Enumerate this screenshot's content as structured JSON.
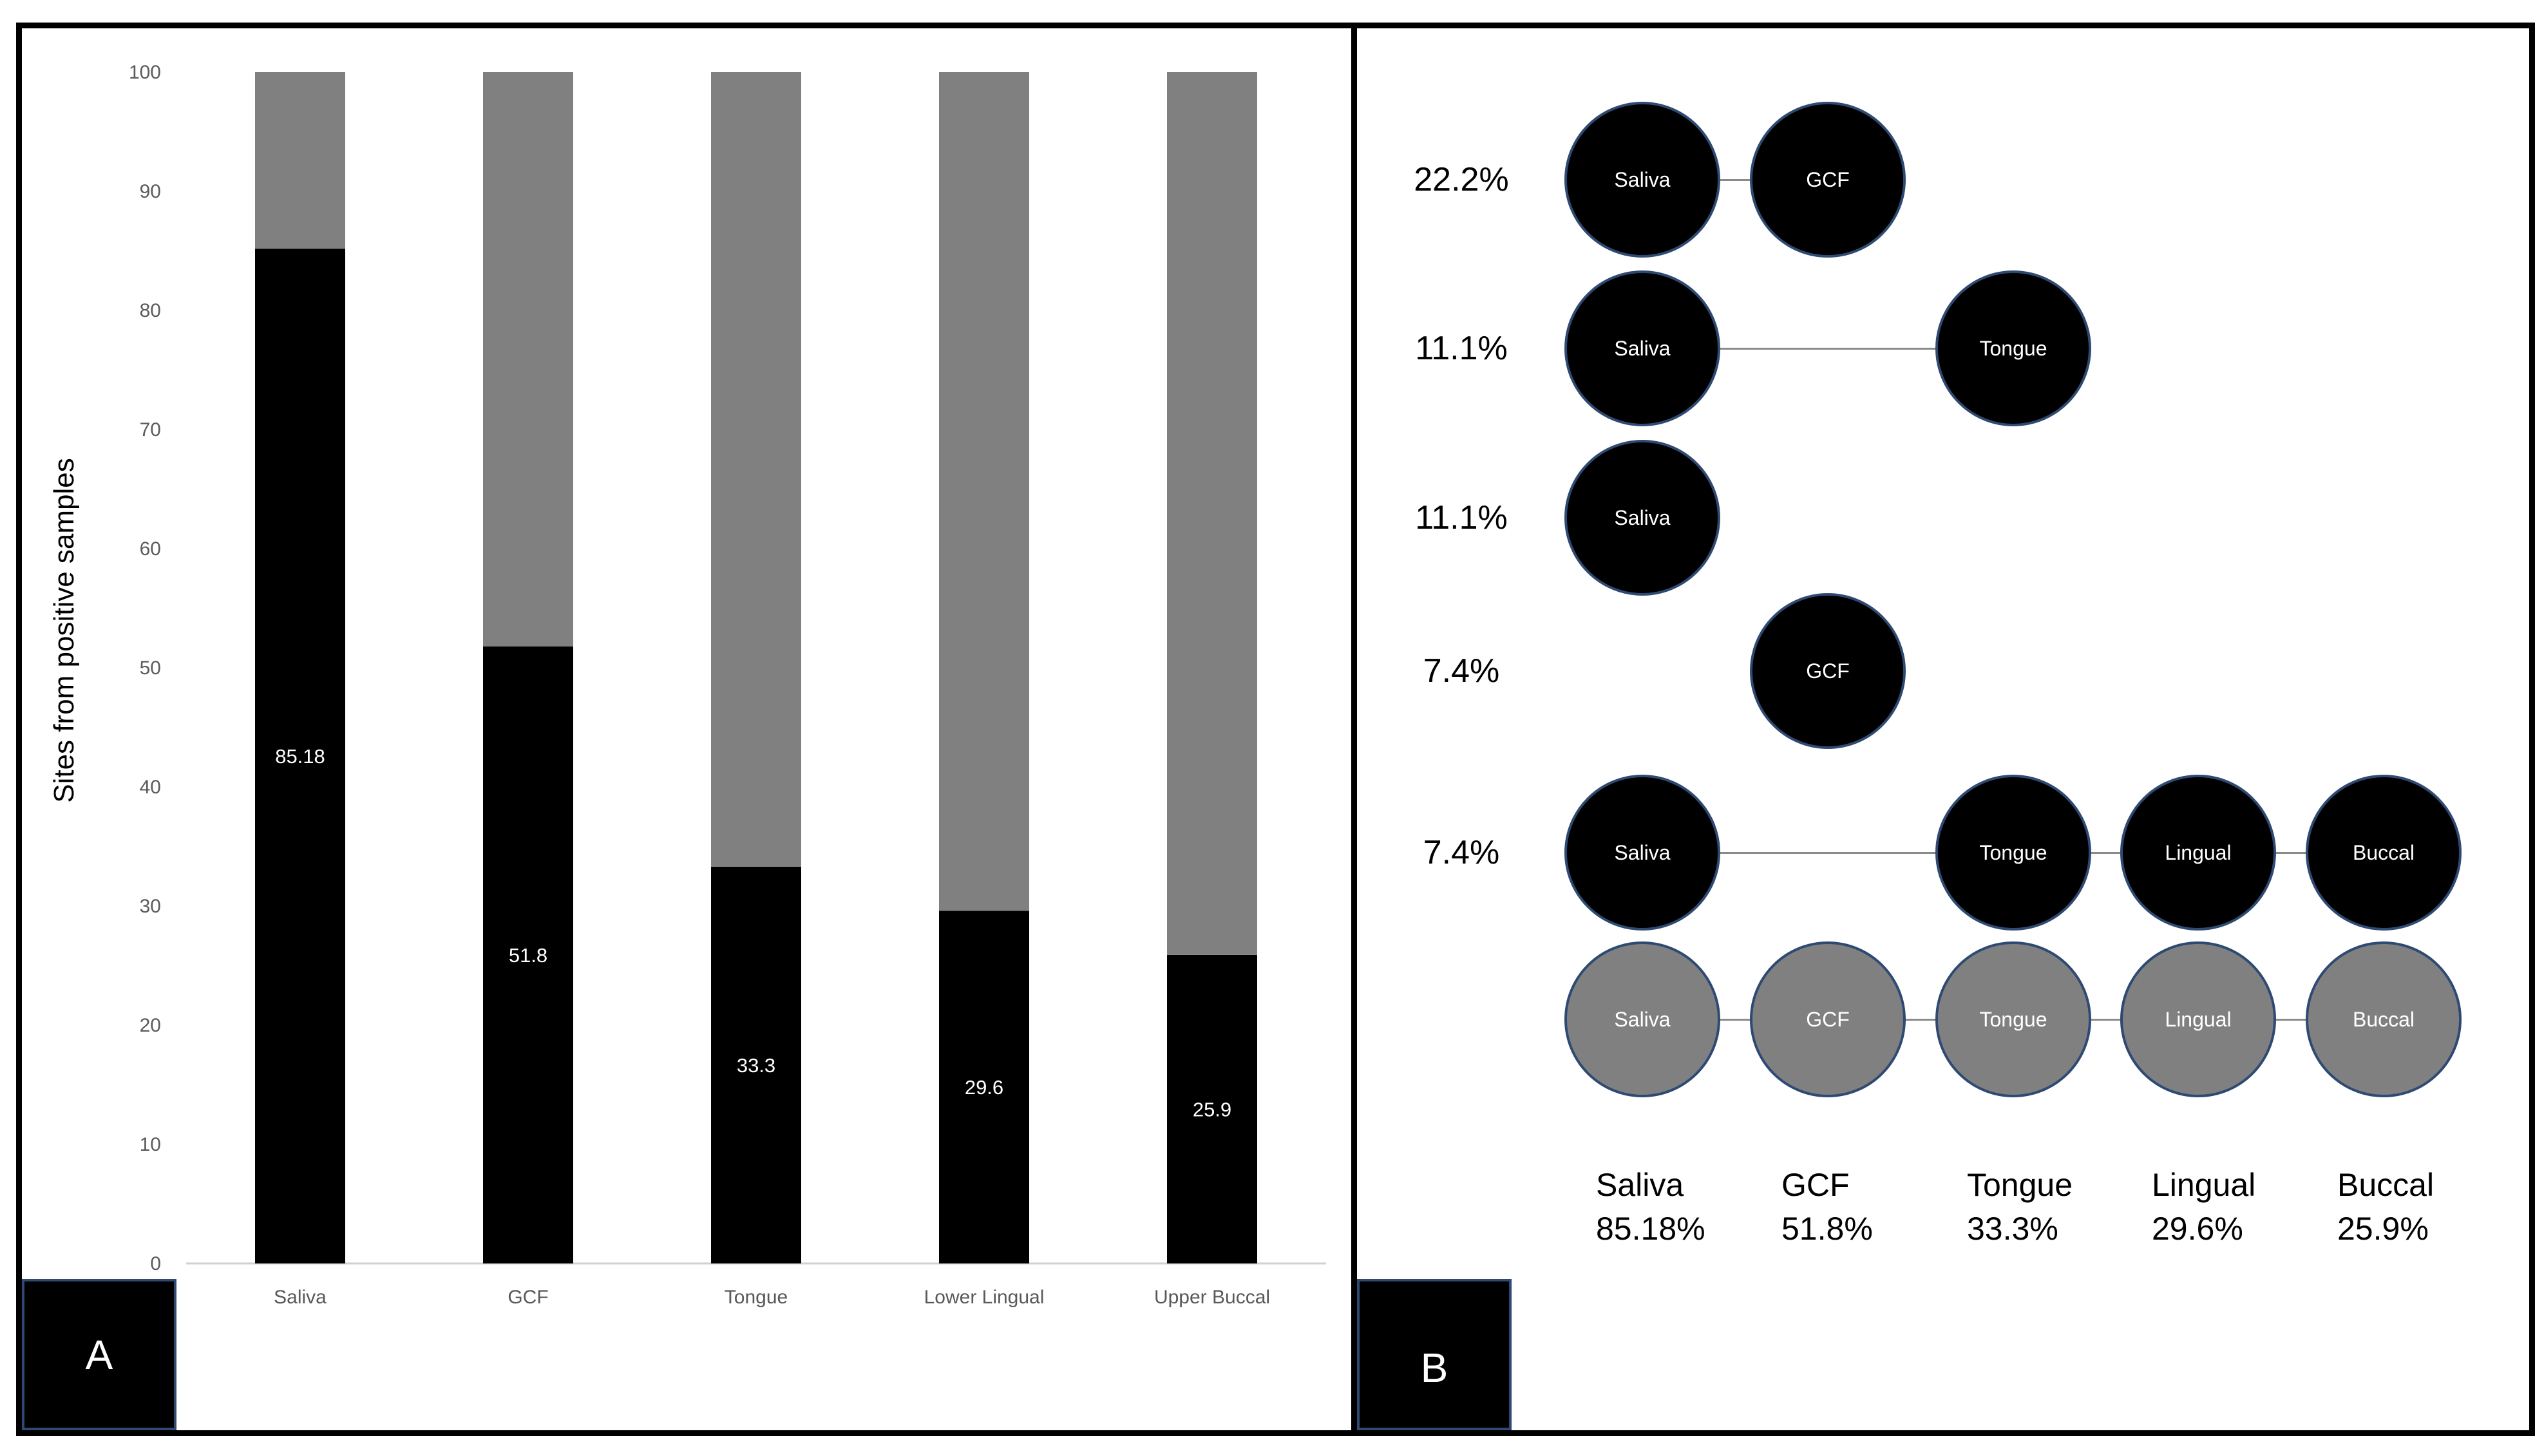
{
  "panel_a": {
    "tag": "A",
    "chart_data": {
      "type": "bar",
      "stacked": true,
      "categories": [
        "Saliva",
        "GCF",
        "Tongue",
        "Lower Lingual",
        "Upper Buccal"
      ],
      "series": [
        {
          "values": [
            85.18,
            51.8,
            33.3,
            29.6,
            25.9
          ],
          "color": "#000000"
        },
        {
          "values": [
            14.82,
            48.2,
            66.7,
            70.4,
            74.1
          ],
          "color": "#808080"
        }
      ],
      "data_labels": [
        "85.18",
        "51.8",
        "33.3",
        "29.6",
        "25.9"
      ],
      "ylabel": "Sites from positive samples",
      "ylim": [
        0,
        100
      ],
      "yticks": [
        0,
        10,
        20,
        30,
        40,
        50,
        60,
        70,
        80,
        90,
        100
      ],
      "grid": false,
      "legend": "none"
    }
  },
  "panel_b": {
    "tag": "B",
    "rows": [
      {
        "percent": "22.2%",
        "nodes": [
          "Saliva",
          "GCF"
        ]
      },
      {
        "percent": "11.1%",
        "nodes": [
          "Saliva",
          "Tongue"
        ]
      },
      {
        "percent": "11.1%",
        "nodes": [
          "Saliva"
        ]
      },
      {
        "percent": "7.4%",
        "nodes": [
          "GCF"
        ]
      },
      {
        "percent": "7.4%",
        "nodes": [
          "Saliva",
          "Tongue",
          "Lingual",
          "Buccal"
        ]
      },
      {
        "percent": "",
        "nodes": [
          "Saliva",
          "GCF",
          "Tongue",
          "Lingual",
          "Buccal"
        ]
      }
    ],
    "legend": [
      {
        "site": "Saliva",
        "value": "85.18%"
      },
      {
        "site": "GCF",
        "value": "51.8%"
      },
      {
        "site": "Tongue",
        "value": "33.3%"
      },
      {
        "site": "Lingual",
        "value": "29.6%"
      },
      {
        "site": "Buccal",
        "value": "25.9%"
      }
    ],
    "colors": {
      "present": "#000000",
      "all_sites": "#808080"
    }
  }
}
